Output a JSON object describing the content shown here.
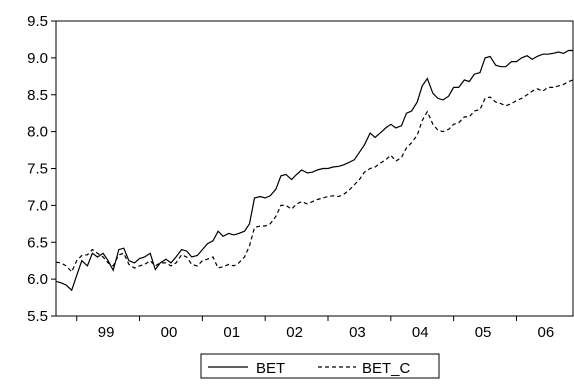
{
  "chart_data": {
    "type": "line",
    "title": "",
    "xlabel": "",
    "ylabel": "",
    "ylim": [
      5.5,
      9.5
    ],
    "yticks": [
      "5.5",
      "6.0",
      "6.5",
      "7.0",
      "7.5",
      "8.0",
      "8.5",
      "9.0",
      "9.5"
    ],
    "xlim": [
      1998.67,
      2006.9
    ],
    "x_tick_labels": [
      {
        "label": "99",
        "year": 1999
      },
      {
        "label": "00",
        "year": 2000
      },
      {
        "label": "01",
        "year": 2001
      },
      {
        "label": "02",
        "year": 2002
      },
      {
        "label": "03",
        "year": 2003
      },
      {
        "label": "04",
        "year": 2004
      },
      {
        "label": "05",
        "year": 2005
      },
      {
        "label": "06",
        "year": 2006
      }
    ],
    "grid": false,
    "legend": "bottom-center",
    "series": [
      {
        "name": "BET",
        "style": "solid",
        "color": "#000000",
        "points": [
          [
            1998.67,
            5.97
          ],
          [
            1998.75,
            5.95
          ],
          [
            1998.83,
            5.92
          ],
          [
            1998.92,
            5.85
          ],
          [
            1999.0,
            6.05
          ],
          [
            1999.08,
            6.25
          ],
          [
            1999.17,
            6.18
          ],
          [
            1999.25,
            6.35
          ],
          [
            1999.33,
            6.3
          ],
          [
            1999.42,
            6.35
          ],
          [
            1999.5,
            6.25
          ],
          [
            1999.58,
            6.12
          ],
          [
            1999.67,
            6.4
          ],
          [
            1999.75,
            6.42
          ],
          [
            1999.83,
            6.25
          ],
          [
            1999.92,
            6.22
          ],
          [
            2000.0,
            6.28
          ],
          [
            2000.08,
            6.3
          ],
          [
            2000.17,
            6.35
          ],
          [
            2000.25,
            6.13
          ],
          [
            2000.33,
            6.22
          ],
          [
            2000.42,
            6.27
          ],
          [
            2000.5,
            6.22
          ],
          [
            2000.58,
            6.3
          ],
          [
            2000.67,
            6.4
          ],
          [
            2000.75,
            6.38
          ],
          [
            2000.83,
            6.3
          ],
          [
            2000.92,
            6.32
          ],
          [
            2001.0,
            6.4
          ],
          [
            2001.08,
            6.48
          ],
          [
            2001.17,
            6.52
          ],
          [
            2001.25,
            6.65
          ],
          [
            2001.33,
            6.58
          ],
          [
            2001.42,
            6.62
          ],
          [
            2001.5,
            6.6
          ],
          [
            2001.58,
            6.62
          ],
          [
            2001.67,
            6.65
          ],
          [
            2001.75,
            6.75
          ],
          [
            2001.83,
            7.1
          ],
          [
            2001.92,
            7.12
          ],
          [
            2002.0,
            7.1
          ],
          [
            2002.08,
            7.13
          ],
          [
            2002.17,
            7.22
          ],
          [
            2002.25,
            7.4
          ],
          [
            2002.33,
            7.42
          ],
          [
            2002.42,
            7.35
          ],
          [
            2002.5,
            7.42
          ],
          [
            2002.58,
            7.48
          ],
          [
            2002.67,
            7.44
          ],
          [
            2002.75,
            7.45
          ],
          [
            2002.83,
            7.48
          ],
          [
            2002.92,
            7.5
          ],
          [
            2003.0,
            7.5
          ],
          [
            2003.08,
            7.52
          ],
          [
            2003.17,
            7.53
          ],
          [
            2003.25,
            7.55
          ],
          [
            2003.33,
            7.58
          ],
          [
            2003.42,
            7.62
          ],
          [
            2003.5,
            7.72
          ],
          [
            2003.58,
            7.82
          ],
          [
            2003.67,
            7.98
          ],
          [
            2003.75,
            7.92
          ],
          [
            2003.83,
            7.98
          ],
          [
            2003.92,
            8.05
          ],
          [
            2004.0,
            8.1
          ],
          [
            2004.08,
            8.05
          ],
          [
            2004.17,
            8.08
          ],
          [
            2004.25,
            8.25
          ],
          [
            2004.33,
            8.28
          ],
          [
            2004.42,
            8.4
          ],
          [
            2004.5,
            8.62
          ],
          [
            2004.58,
            8.72
          ],
          [
            2004.67,
            8.52
          ],
          [
            2004.75,
            8.45
          ],
          [
            2004.83,
            8.43
          ],
          [
            2004.92,
            8.48
          ],
          [
            2005.0,
            8.6
          ],
          [
            2005.08,
            8.6
          ],
          [
            2005.17,
            8.7
          ],
          [
            2005.25,
            8.68
          ],
          [
            2005.33,
            8.78
          ],
          [
            2005.42,
            8.8
          ],
          [
            2005.5,
            9.0
          ],
          [
            2005.58,
            9.02
          ],
          [
            2005.67,
            8.9
          ],
          [
            2005.75,
            8.88
          ],
          [
            2005.83,
            8.88
          ],
          [
            2005.92,
            8.95
          ],
          [
            2006.0,
            8.95
          ],
          [
            2006.08,
            9.0
          ],
          [
            2006.17,
            9.03
          ],
          [
            2006.25,
            8.98
          ],
          [
            2006.33,
            9.02
          ],
          [
            2006.42,
            9.05
          ],
          [
            2006.5,
            9.05
          ],
          [
            2006.58,
            9.06
          ],
          [
            2006.67,
            9.08
          ],
          [
            2006.75,
            9.06
          ],
          [
            2006.83,
            9.1
          ],
          [
            2006.9,
            9.1
          ]
        ]
      },
      {
        "name": "BET_C",
        "style": "dashed",
        "color": "#000000",
        "points": [
          [
            1998.67,
            6.23
          ],
          [
            1998.75,
            6.22
          ],
          [
            1998.83,
            6.18
          ],
          [
            1998.92,
            6.1
          ],
          [
            1999.0,
            6.25
          ],
          [
            1999.08,
            6.32
          ],
          [
            1999.17,
            6.33
          ],
          [
            1999.25,
            6.4
          ],
          [
            1999.33,
            6.35
          ],
          [
            1999.42,
            6.3
          ],
          [
            1999.5,
            6.22
          ],
          [
            1999.58,
            6.18
          ],
          [
            1999.67,
            6.33
          ],
          [
            1999.75,
            6.35
          ],
          [
            1999.83,
            6.2
          ],
          [
            1999.92,
            6.15
          ],
          [
            2000.0,
            6.18
          ],
          [
            2000.08,
            6.2
          ],
          [
            2000.17,
            6.25
          ],
          [
            2000.25,
            6.18
          ],
          [
            2000.33,
            6.22
          ],
          [
            2000.42,
            6.22
          ],
          [
            2000.5,
            6.18
          ],
          [
            2000.58,
            6.22
          ],
          [
            2000.67,
            6.33
          ],
          [
            2000.75,
            6.3
          ],
          [
            2000.83,
            6.2
          ],
          [
            2000.92,
            6.18
          ],
          [
            2001.0,
            6.25
          ],
          [
            2001.08,
            6.27
          ],
          [
            2001.17,
            6.3
          ],
          [
            2001.25,
            6.15
          ],
          [
            2001.33,
            6.17
          ],
          [
            2001.42,
            6.2
          ],
          [
            2001.5,
            6.18
          ],
          [
            2001.58,
            6.22
          ],
          [
            2001.67,
            6.3
          ],
          [
            2001.75,
            6.45
          ],
          [
            2001.83,
            6.7
          ],
          [
            2001.92,
            6.72
          ],
          [
            2002.0,
            6.72
          ],
          [
            2002.08,
            6.75
          ],
          [
            2002.17,
            6.85
          ],
          [
            2002.25,
            7.0
          ],
          [
            2002.33,
            7.0
          ],
          [
            2002.42,
            6.95
          ],
          [
            2002.5,
            7.02
          ],
          [
            2002.58,
            7.05
          ],
          [
            2002.67,
            7.02
          ],
          [
            2002.75,
            7.05
          ],
          [
            2002.83,
            7.08
          ],
          [
            2002.92,
            7.1
          ],
          [
            2003.0,
            7.12
          ],
          [
            2003.08,
            7.13
          ],
          [
            2003.17,
            7.12
          ],
          [
            2003.25,
            7.15
          ],
          [
            2003.33,
            7.2
          ],
          [
            2003.42,
            7.28
          ],
          [
            2003.5,
            7.35
          ],
          [
            2003.58,
            7.45
          ],
          [
            2003.67,
            7.5
          ],
          [
            2003.75,
            7.52
          ],
          [
            2003.83,
            7.57
          ],
          [
            2003.92,
            7.62
          ],
          [
            2004.0,
            7.68
          ],
          [
            2004.08,
            7.6
          ],
          [
            2004.17,
            7.65
          ],
          [
            2004.25,
            7.78
          ],
          [
            2004.33,
            7.85
          ],
          [
            2004.42,
            7.95
          ],
          [
            2004.5,
            8.15
          ],
          [
            2004.58,
            8.27
          ],
          [
            2004.67,
            8.1
          ],
          [
            2004.75,
            8.02
          ],
          [
            2004.83,
            8.0
          ],
          [
            2004.92,
            8.03
          ],
          [
            2005.0,
            8.1
          ],
          [
            2005.08,
            8.12
          ],
          [
            2005.17,
            8.2
          ],
          [
            2005.25,
            8.2
          ],
          [
            2005.33,
            8.28
          ],
          [
            2005.42,
            8.3
          ],
          [
            2005.5,
            8.45
          ],
          [
            2005.58,
            8.47
          ],
          [
            2005.67,
            8.4
          ],
          [
            2005.75,
            8.38
          ],
          [
            2005.83,
            8.35
          ],
          [
            2005.92,
            8.38
          ],
          [
            2006.0,
            8.42
          ],
          [
            2006.08,
            8.45
          ],
          [
            2006.17,
            8.5
          ],
          [
            2006.25,
            8.55
          ],
          [
            2006.33,
            8.58
          ],
          [
            2006.42,
            8.55
          ],
          [
            2006.5,
            8.6
          ],
          [
            2006.58,
            8.6
          ],
          [
            2006.67,
            8.62
          ],
          [
            2006.75,
            8.64
          ],
          [
            2006.83,
            8.68
          ],
          [
            2006.9,
            8.7
          ]
        ]
      }
    ]
  }
}
